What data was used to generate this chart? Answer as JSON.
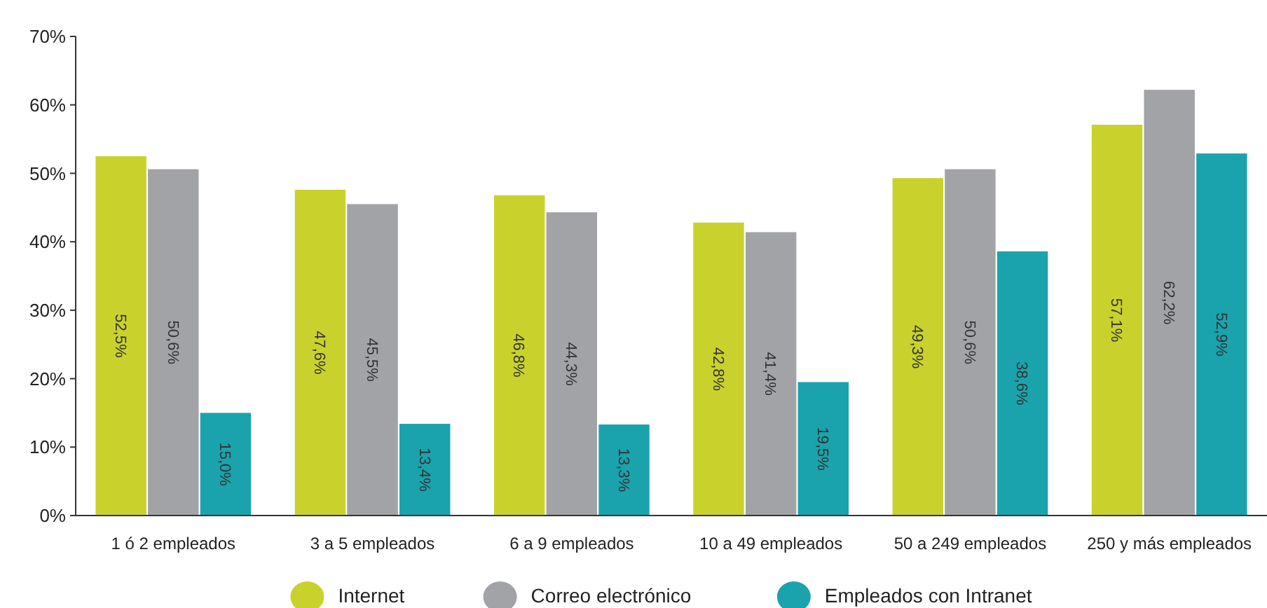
{
  "chart_data": {
    "type": "bar",
    "categories": [
      "1 ó 2 empleados",
      "3 a 5 empleados",
      "6 a 9 empleados",
      "10 a 49 empleados",
      "50 a 249 empleados",
      "250 y más empleados"
    ],
    "series": [
      {
        "name": "Internet",
        "color": "#c9d22c",
        "values": [
          52.5,
          47.6,
          46.8,
          42.8,
          49.3,
          57.1
        ],
        "value_labels": [
          "52,5%",
          "47,6%",
          "46,8%",
          "42,8%",
          "49,3%",
          "57,1%"
        ]
      },
      {
        "name": "Correo electrónico",
        "color": "#a2a3a6",
        "values": [
          50.6,
          45.5,
          44.3,
          41.4,
          50.6,
          62.2
        ],
        "value_labels": [
          "50,6%",
          "45,5%",
          "44,3%",
          "41,4%",
          "50,6%",
          "62,2%"
        ]
      },
      {
        "name": "Empleados con Intranet",
        "color": "#1aa3ac",
        "values": [
          15.0,
          13.4,
          13.3,
          19.5,
          38.6,
          52.9
        ],
        "value_labels": [
          "15,0%",
          "13,4%",
          "13,3%",
          "19,5%",
          "38,6%",
          "52,9%"
        ]
      }
    ],
    "ylim": [
      0,
      70
    ],
    "yticks": [
      {
        "value": 0,
        "label": "0%"
      },
      {
        "value": 10,
        "label": "10%"
      },
      {
        "value": 20,
        "label": "20%"
      },
      {
        "value": 30,
        "label": "30%"
      },
      {
        "value": 40,
        "label": "40%"
      },
      {
        "value": 50,
        "label": "50%"
      },
      {
        "value": 60,
        "label": "60%"
      },
      {
        "value": 70,
        "label": "70%"
      }
    ],
    "grid": false,
    "legend": "bottom"
  }
}
